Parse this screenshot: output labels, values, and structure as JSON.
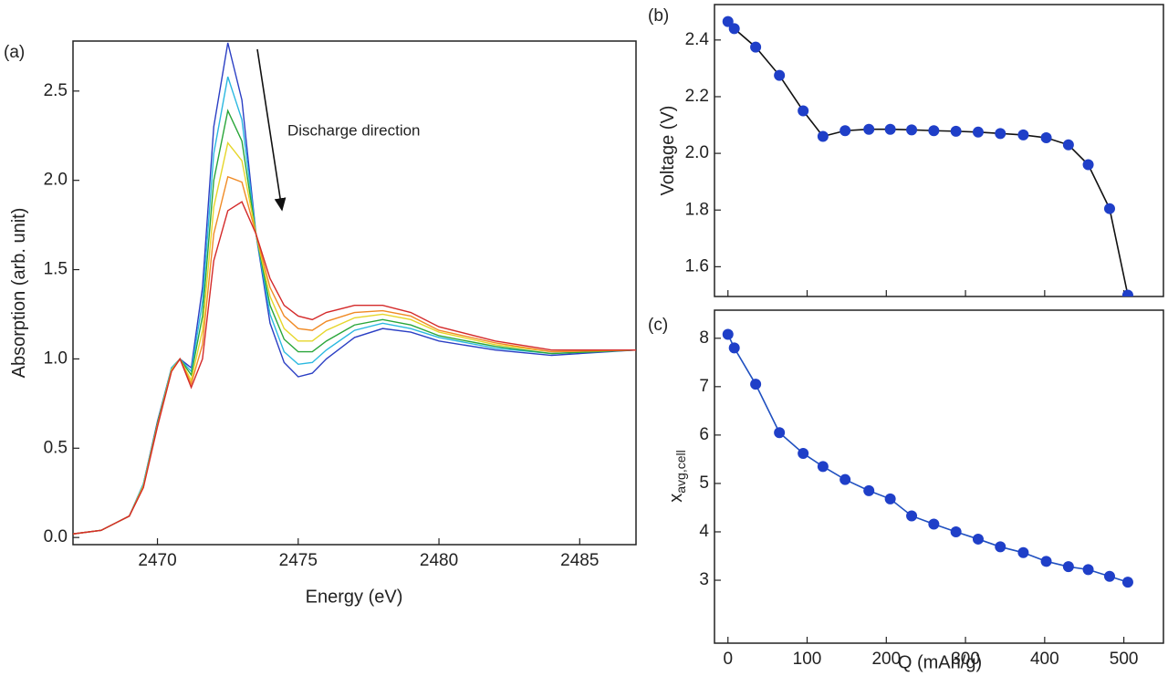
{
  "chart_data": [
    {
      "type": "line",
      "panel_label": "(a)",
      "xlabel": "Energy (eV)",
      "ylabel": "Absorption (arb. unit)",
      "annotation": "Discharge direction",
      "xlim": [
        2467,
        2487
      ],
      "xticks": [
        2470,
        2475,
        2480,
        2485
      ],
      "ylim": [
        -0.04,
        2.78
      ],
      "yticks": [
        {
          "value": 0,
          "label": "0.0"
        },
        0.5,
        {
          "value": 1,
          "label": "1.0"
        },
        1.5,
        {
          "value": 2,
          "label": "2.0"
        },
        2.5
      ],
      "x": [
        2467,
        2468,
        2469,
        2469.5,
        2470,
        2470.5,
        2470.8,
        2471.2,
        2471.6,
        2472,
        2472.5,
        2473,
        2473.5,
        2474,
        2474.5,
        2475,
        2475.5,
        2476,
        2477,
        2478,
        2479,
        2480,
        2482,
        2484,
        2487
      ],
      "series": [
        {
          "color": "#2b3fc4",
          "values": [
            0.02,
            0.04,
            0.12,
            0.3,
            0.65,
            0.95,
            1.0,
            0.95,
            1.4,
            2.3,
            2.77,
            2.45,
            1.7,
            1.2,
            0.98,
            0.9,
            0.92,
            1.0,
            1.12,
            1.17,
            1.15,
            1.1,
            1.05,
            1.02,
            1.05
          ]
        },
        {
          "color": "#2ab8e0",
          "values": [
            0.02,
            0.04,
            0.12,
            0.3,
            0.64,
            0.95,
            1.0,
            0.93,
            1.32,
            2.15,
            2.58,
            2.34,
            1.7,
            1.25,
            1.04,
            0.97,
            0.98,
            1.05,
            1.16,
            1.2,
            1.17,
            1.12,
            1.06,
            1.03,
            1.05
          ]
        },
        {
          "color": "#2aa63a",
          "values": [
            0.02,
            0.04,
            0.12,
            0.29,
            0.64,
            0.94,
            1.0,
            0.91,
            1.24,
            2.0,
            2.39,
            2.22,
            1.7,
            1.3,
            1.11,
            1.04,
            1.04,
            1.1,
            1.19,
            1.22,
            1.19,
            1.13,
            1.07,
            1.03,
            1.05
          ]
        },
        {
          "color": "#e6d62a",
          "values": [
            0.02,
            0.04,
            0.12,
            0.29,
            0.63,
            0.94,
            1.0,
            0.88,
            1.16,
            1.85,
            2.21,
            2.11,
            1.7,
            1.35,
            1.17,
            1.1,
            1.1,
            1.16,
            1.23,
            1.25,
            1.22,
            1.15,
            1.08,
            1.04,
            1.05
          ]
        },
        {
          "color": "#f08a24",
          "values": [
            0.02,
            0.04,
            0.12,
            0.28,
            0.63,
            0.93,
            1.0,
            0.86,
            1.08,
            1.7,
            2.02,
            1.99,
            1.7,
            1.4,
            1.24,
            1.17,
            1.16,
            1.21,
            1.26,
            1.27,
            1.24,
            1.16,
            1.09,
            1.04,
            1.05
          ]
        },
        {
          "color": "#d42a2a",
          "values": [
            0.02,
            0.04,
            0.12,
            0.28,
            0.62,
            0.93,
            1.0,
            0.84,
            1.0,
            1.55,
            1.83,
            1.88,
            1.7,
            1.45,
            1.3,
            1.24,
            1.22,
            1.26,
            1.3,
            1.3,
            1.26,
            1.18,
            1.1,
            1.05,
            1.05
          ]
        }
      ]
    },
    {
      "type": "line",
      "panel_label": "(b)",
      "ylabel": "Voltage (V)",
      "markers": true,
      "show_xtick_labels": false,
      "xlim": [
        -17,
        550
      ],
      "xticks": [
        0,
        100,
        200,
        300,
        400,
        500
      ],
      "ylim": [
        1.495,
        2.525
      ],
      "yticks": [
        1.6,
        1.8,
        {
          "value": 2,
          "label": "2.0"
        },
        2.2,
        2.4
      ],
      "x": [
        0,
        8,
        35,
        65,
        95,
        120,
        148,
        178,
        205,
        232,
        260,
        288,
        316,
        344,
        373,
        402,
        430,
        455,
        482,
        505
      ],
      "series": [
        {
          "color": "#111111",
          "marker_color": "#1f3fc8",
          "values": [
            2.465,
            2.44,
            2.375,
            2.275,
            2.15,
            2.06,
            2.08,
            2.085,
            2.085,
            2.083,
            2.08,
            2.078,
            2.075,
            2.07,
            2.065,
            2.055,
            2.03,
            1.96,
            1.805,
            1.5
          ]
        }
      ]
    },
    {
      "type": "line",
      "panel_label": "(c)",
      "ylabel": "x",
      "ylabel_subscript": "avg,cell",
      "xlabel": "Q (mAh/g)",
      "markers": true,
      "xlim": [
        -17,
        550
      ],
      "xticks": [
        0,
        100,
        200,
        300,
        400,
        500
      ],
      "ylim": [
        1.7,
        8.58
      ],
      "yticks": [
        3,
        4,
        5,
        6,
        7,
        8
      ],
      "x": [
        0,
        8,
        35,
        65,
        95,
        120,
        148,
        178,
        205,
        232,
        260,
        288,
        316,
        344,
        373,
        402,
        430,
        455,
        482,
        505
      ],
      "series": [
        {
          "color": "#2050c0",
          "marker_color": "#1f3fc8",
          "values": [
            8.08,
            7.8,
            7.05,
            6.05,
            5.62,
            5.35,
            5.08,
            4.85,
            4.68,
            4.33,
            4.16,
            4.0,
            3.85,
            3.69,
            3.57,
            3.39,
            3.28,
            3.22,
            3.08,
            2.96
          ]
        }
      ]
    }
  ]
}
